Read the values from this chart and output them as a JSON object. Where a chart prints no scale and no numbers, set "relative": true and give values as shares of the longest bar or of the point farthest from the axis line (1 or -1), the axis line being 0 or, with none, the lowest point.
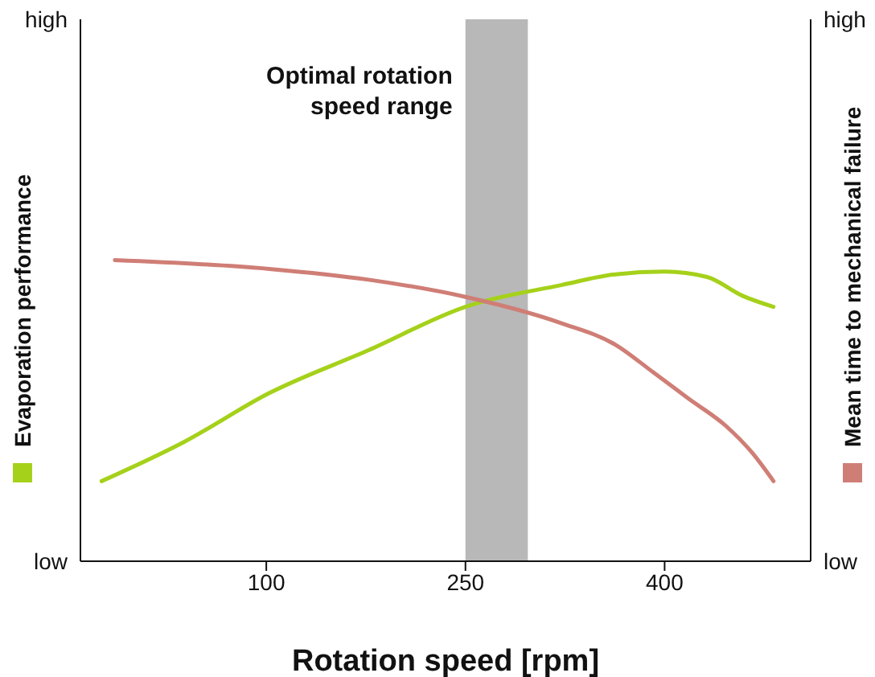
{
  "chart_data": {
    "type": "line",
    "xlabel": "Rotation speed [rpm]",
    "ylabel": "Evaporation performance",
    "y2label": "Mean time to mechanical failure",
    "xlim": [
      -40,
      510
    ],
    "xticks": [
      100,
      250,
      400
    ],
    "relative": true,
    "annotations": [
      "high",
      "low",
      "high",
      "low"
    ],
    "marker": "none",
    "line_style": "solid",
    "grid": false,
    "legend": false,
    "series": [
      {
        "color": "#a5d11a",
        "x": [
          -24,
          38,
          102,
          177,
          250,
          322,
          363,
          400,
          432,
          459,
          482
        ],
        "values": [
          0.266,
          0.396,
          0.558,
          0.701,
          0.845,
          0.917,
          0.953,
          0.962,
          0.944,
          0.881,
          0.845
        ]
      },
      {
        "color": "#cf7e76",
        "axis": "y2",
        "x": [
          -14,
          102,
          177,
          250,
          322,
          363,
          391,
          418,
          446,
          466,
          482
        ],
        "values": [
          1,
          0.971,
          0.935,
          0.878,
          0.791,
          0.719,
          0.629,
          0.54,
          0.45,
          0.36,
          0.266
        ]
      }
    ],
    "bands": [
      {
        "axis": "x",
        "from": 250,
        "to": 297,
        "label": "Optimal rotation speed range",
        "color": "#b8b8b8"
      }
    ]
  }
}
